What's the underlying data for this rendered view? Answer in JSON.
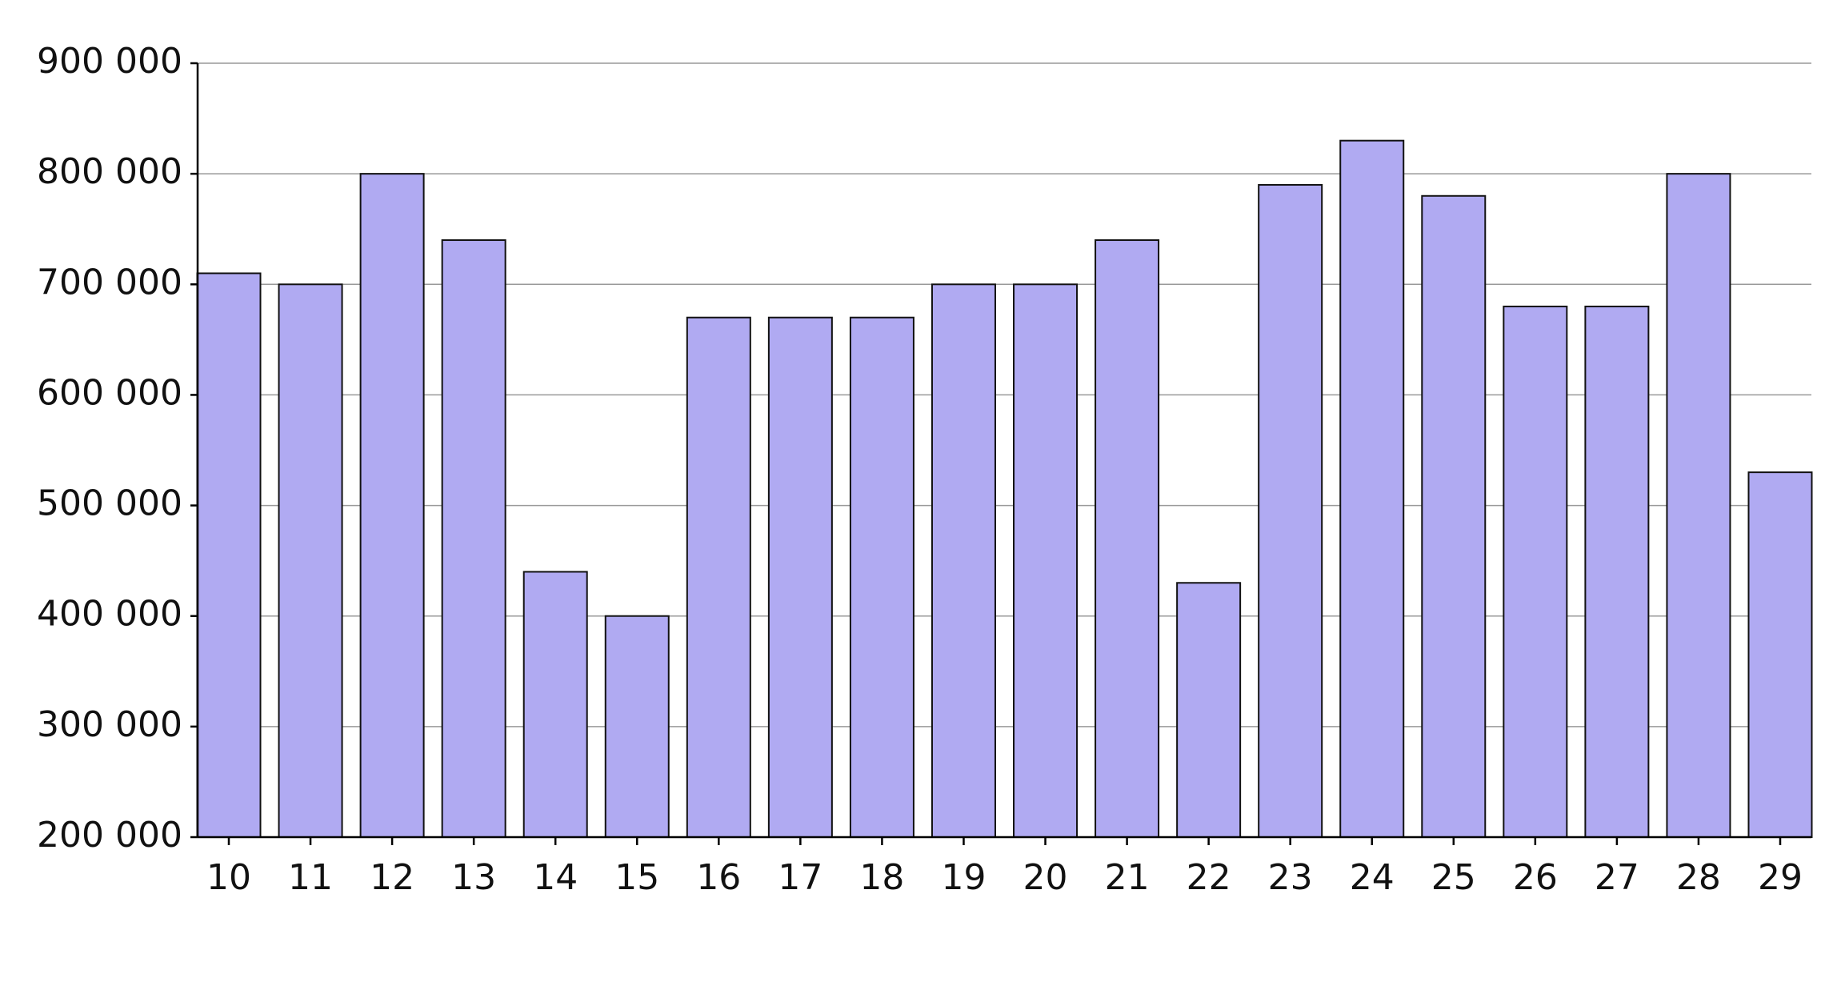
{
  "chart_data": {
    "type": "bar",
    "categories": [
      "10",
      "11",
      "12",
      "13",
      "14",
      "15",
      "16",
      "17",
      "18",
      "19",
      "20",
      "21",
      "22",
      "23",
      "24",
      "25",
      "26",
      "27",
      "28",
      "29"
    ],
    "values": [
      710000,
      700000,
      800000,
      740000,
      440000,
      400000,
      670000,
      670000,
      670000,
      700000,
      700000,
      740000,
      430000,
      790000,
      830000,
      780000,
      680000,
      680000,
      800000,
      530000
    ],
    "color": "#b0aaf2",
    "ylim": [
      200000,
      900000
    ],
    "yticks": [
      {
        "value": 200000,
        "label": "200 000"
      },
      {
        "value": 300000,
        "label": "300 000"
      },
      {
        "value": 400000,
        "label": "400 000"
      },
      {
        "value": 500000,
        "label": "500 000"
      },
      {
        "value": 600000,
        "label": "600 000"
      },
      {
        "value": 700000,
        "label": "700 000"
      },
      {
        "value": 800000,
        "label": "800 000"
      },
      {
        "value": 900000,
        "label": "900 000"
      }
    ],
    "grid": true
  }
}
